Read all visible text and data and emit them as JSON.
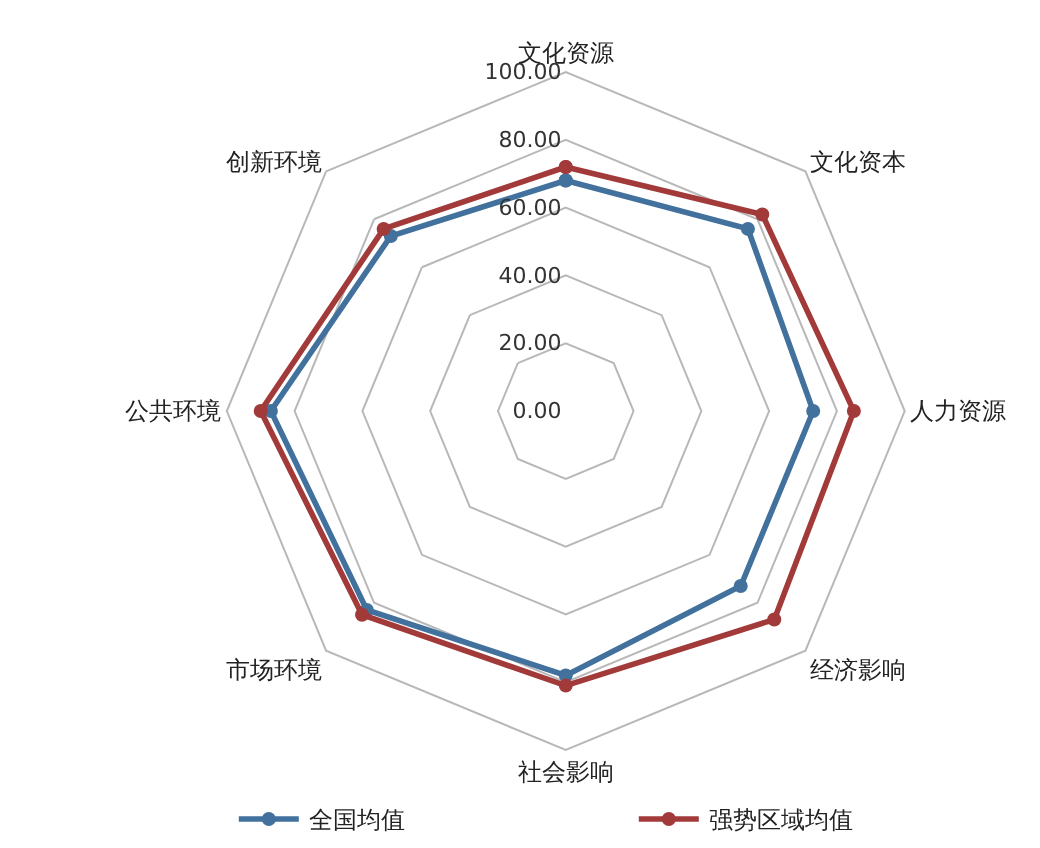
{
  "chart_data": {
    "type": "radar",
    "categories": [
      "文化资源",
      "文化资本",
      "人力资源",
      "经济影响",
      "社会影响",
      "市场环境",
      "公共环境",
      "创新环境"
    ],
    "series": [
      {
        "name": "全国均值",
        "color": "#41719c",
        "values": [
          68,
          76,
          73,
          73,
          78,
          83,
          87,
          73
        ]
      },
      {
        "name": "强势区域均值",
        "color": "#a23a3a",
        "values": [
          72,
          82,
          85,
          87,
          81,
          85,
          90,
          76
        ]
      }
    ],
    "ylim": [
      0,
      100
    ],
    "yticks": [
      {
        "value": 0,
        "label": "0.00"
      },
      {
        "value": 20,
        "label": "20.00"
      },
      {
        "value": 40,
        "label": "40.00"
      },
      {
        "value": 60,
        "label": "60.00"
      },
      {
        "value": 80,
        "label": "80.00"
      },
      {
        "value": 100,
        "label": "100.00"
      }
    ],
    "grid": true,
    "legend": "bottom",
    "marker": "circle",
    "line_style": "solid"
  }
}
